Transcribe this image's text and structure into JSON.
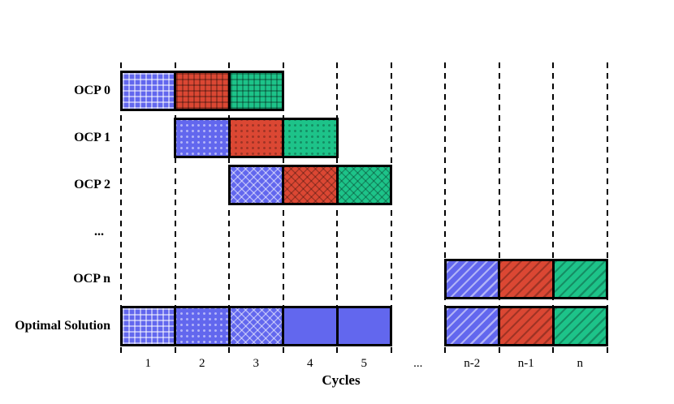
{
  "chart_data": {
    "type": "bar",
    "subtype": "gantt",
    "title": "",
    "xlabel": "Cycles",
    "ylabel": "",
    "grid": "dashed-vertical",
    "legend": "none",
    "categories": [
      "1",
      "2",
      "3",
      "4",
      "5",
      "...",
      "n-2",
      "n-1",
      "n"
    ],
    "colors": {
      "blue": "#6267EE",
      "red": "#DB4733",
      "green": "#1DC389"
    },
    "pattern_overlays": {
      "light": "rgba(255,255,255,0.5)",
      "dark": "rgba(0,0,0,0.27)"
    },
    "rows": [
      {
        "label": "OCP 0",
        "blocks": [
          {
            "cycle": "1",
            "color": "blue",
            "pattern": "grid",
            "shade": "light"
          },
          {
            "cycle": "2",
            "color": "red",
            "pattern": "grid",
            "shade": "dark"
          },
          {
            "cycle": "3",
            "color": "green",
            "pattern": "grid",
            "shade": "dark"
          }
        ]
      },
      {
        "label": "OCP 1",
        "blocks": [
          {
            "cycle": "2",
            "color": "blue",
            "pattern": "dots",
            "shade": "light"
          },
          {
            "cycle": "3",
            "color": "red",
            "pattern": "dots",
            "shade": "dark"
          },
          {
            "cycle": "4",
            "color": "green",
            "pattern": "dots",
            "shade": "dark"
          }
        ]
      },
      {
        "label": "OCP 2",
        "blocks": [
          {
            "cycle": "3",
            "color": "blue",
            "pattern": "cross",
            "shade": "light"
          },
          {
            "cycle": "4",
            "color": "red",
            "pattern": "cross",
            "shade": "dark"
          },
          {
            "cycle": "5",
            "color": "green",
            "pattern": "cross",
            "shade": "dark"
          }
        ]
      },
      {
        "label": "...",
        "ellipsis": true,
        "blocks": []
      },
      {
        "label": "OCP n",
        "blocks": [
          {
            "cycle": "n-2",
            "color": "blue",
            "pattern": "diag",
            "shade": "light"
          },
          {
            "cycle": "n-1",
            "color": "red",
            "pattern": "diag",
            "shade": "dark"
          },
          {
            "cycle": "n",
            "color": "green",
            "pattern": "diag",
            "shade": "dark"
          }
        ]
      },
      {
        "label": "Optimal Solution",
        "blocks": [
          {
            "cycle": "1",
            "color": "blue",
            "pattern": "grid",
            "shade": "light"
          },
          {
            "cycle": "2",
            "color": "blue",
            "pattern": "dots",
            "shade": "light"
          },
          {
            "cycle": "3",
            "color": "blue",
            "pattern": "cross",
            "shade": "light"
          },
          {
            "cycle": "4",
            "color": "blue",
            "pattern": "solid"
          },
          {
            "cycle": "5",
            "color": "blue",
            "pattern": "solid"
          },
          {
            "cycle": "n-2",
            "color": "blue",
            "pattern": "diag",
            "shade": "light"
          },
          {
            "cycle": "n-1",
            "color": "red",
            "pattern": "diag",
            "shade": "dark"
          },
          {
            "cycle": "n",
            "color": "green",
            "pattern": "diag",
            "shade": "dark"
          }
        ]
      }
    ]
  }
}
